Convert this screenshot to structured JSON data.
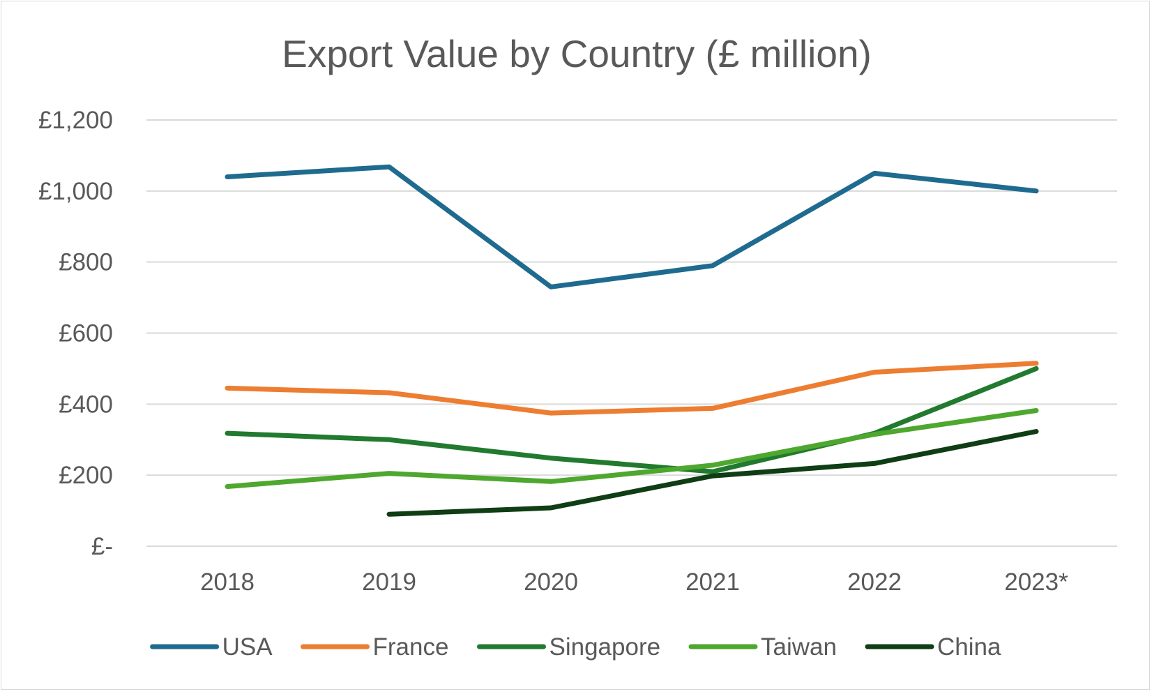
{
  "chart_data": {
    "type": "line",
    "title": "Export Value by Country (£ million)",
    "xlabel": "",
    "ylabel": "",
    "categories": [
      "2018",
      "2019",
      "2020",
      "2021",
      "2022",
      "2023*"
    ],
    "ylim": [
      0,
      1200
    ],
    "yticks": [
      {
        "value": 0,
        "label": "£-"
      },
      {
        "value": 200,
        "label": "£200"
      },
      {
        "value": 400,
        "label": "£400"
      },
      {
        "value": 600,
        "label": "£600"
      },
      {
        "value": 800,
        "label": "£800"
      },
      {
        "value": 1000,
        "label": "£1,000"
      },
      {
        "value": 1200,
        "label": "£1,200"
      }
    ],
    "grid": true,
    "legend_position": "bottom",
    "series": [
      {
        "name": "USA",
        "color": "#1f6b8f",
        "values": [
          1040,
          1068,
          730,
          790,
          1050,
          1000
        ]
      },
      {
        "name": "France",
        "color": "#ed7d31",
        "values": [
          445,
          432,
          375,
          388,
          490,
          515
        ]
      },
      {
        "name": "Singapore",
        "color": "#217a2e",
        "values": [
          318,
          300,
          248,
          210,
          318,
          500
        ]
      },
      {
        "name": "Taiwan",
        "color": "#4ea72e",
        "values": [
          168,
          205,
          182,
          228,
          315,
          382
        ]
      },
      {
        "name": "China",
        "color": "#0f3d14",
        "values": [
          null,
          90,
          108,
          198,
          233,
          323
        ]
      }
    ]
  }
}
